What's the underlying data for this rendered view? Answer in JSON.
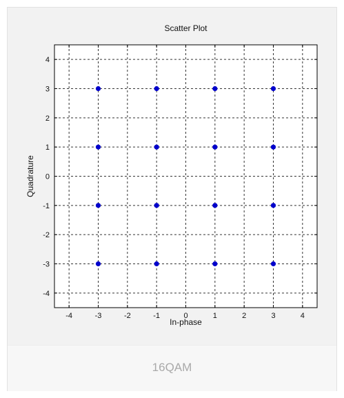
{
  "caption": "16QAM",
  "colors": {
    "marker": "#0000cc",
    "grid": "#333333",
    "axes_bg": "#ffffff"
  },
  "chart_data": {
    "type": "scatter",
    "title": "Scatter Plot",
    "xlabel": "In-phase",
    "ylabel": "Quadrature",
    "xlim": [
      -4.5,
      4.5
    ],
    "ylim": [
      -4.5,
      4.5
    ],
    "xticks": [
      -4,
      -3,
      -2,
      -1,
      0,
      1,
      2,
      3,
      4
    ],
    "yticks": [
      -4,
      -3,
      -2,
      -1,
      0,
      1,
      2,
      3,
      4
    ],
    "grid": true,
    "series": [
      {
        "points": [
          {
            "x": -3,
            "y": 3
          },
          {
            "x": -1,
            "y": 3
          },
          {
            "x": 1,
            "y": 3
          },
          {
            "x": 3,
            "y": 3
          },
          {
            "x": -3,
            "y": 1
          },
          {
            "x": -1,
            "y": 1
          },
          {
            "x": 1,
            "y": 1
          },
          {
            "x": 3,
            "y": 1
          },
          {
            "x": -3,
            "y": -1
          },
          {
            "x": -1,
            "y": -1
          },
          {
            "x": 1,
            "y": -1
          },
          {
            "x": 3,
            "y": -1
          },
          {
            "x": -3,
            "y": -3
          },
          {
            "x": -1,
            "y": -3
          },
          {
            "x": 1,
            "y": -3
          },
          {
            "x": 3,
            "y": -3
          }
        ]
      }
    ]
  }
}
